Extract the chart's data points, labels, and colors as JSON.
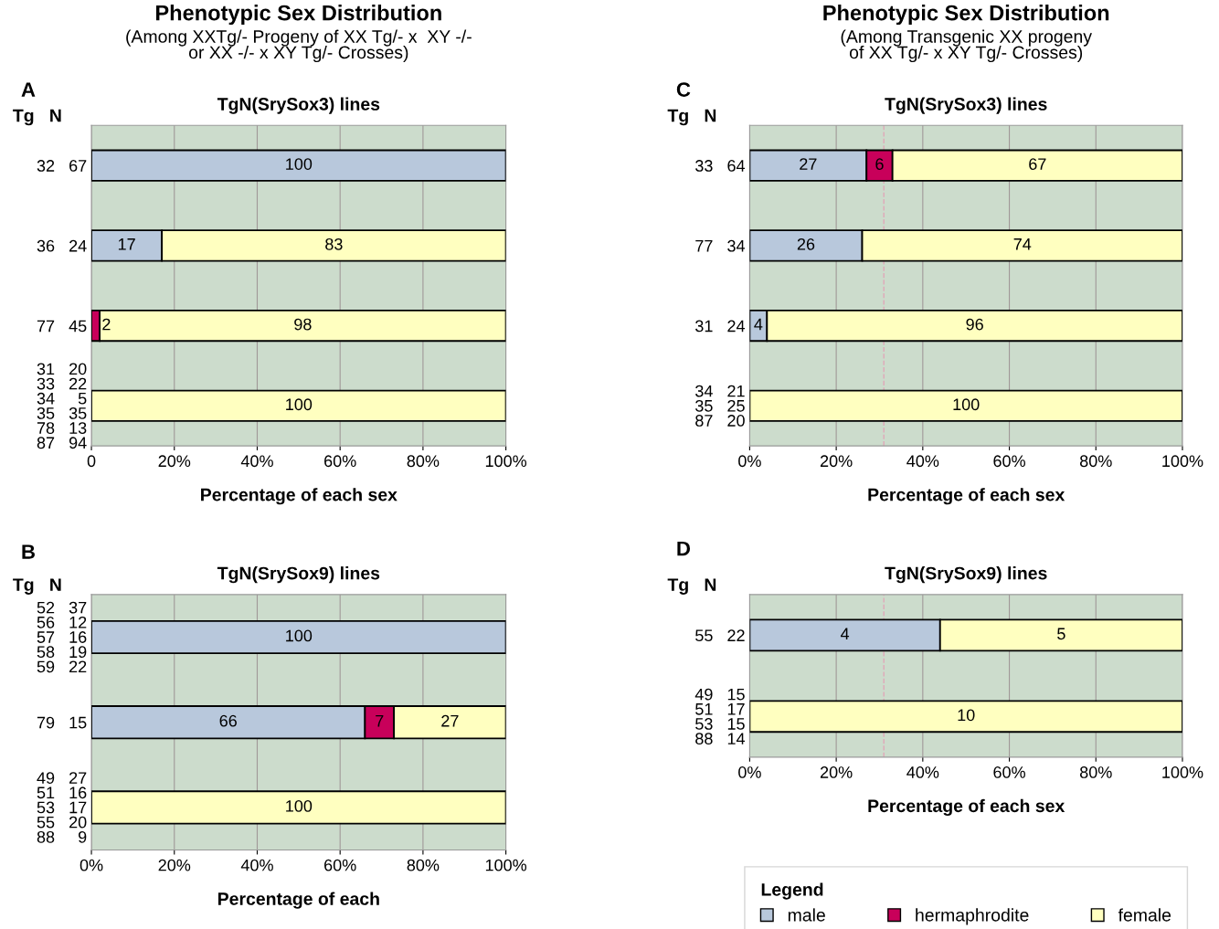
{
  "chart_data": [
    {
      "type": "bar",
      "orientation": "horizontal",
      "stacked": true,
      "title": "Phenotypic Sex Distribution",
      "subtitle": "(Among XXTg/- Progeny of XX Tg/- x  XY -/-\nor XX -/- x XY Tg/- Crosses)",
      "annotations": [
        "A",
        "TgN(SrySox3) lines"
      ],
      "ylabel": "Tg   N",
      "xlabel": "Percentage of each sex",
      "categories": [
        "32   67",
        "36   24",
        "77   45",
        "31   20\n33   22\n34     5\n35   35\n78   13\n87   94"
      ],
      "series": [
        {
          "color": "#b8c8dc",
          "values": [
            100,
            17,
            null,
            null
          ]
        },
        {
          "color": "#c8005a",
          "values": [
            null,
            null,
            2,
            null
          ]
        },
        {
          "color": "#ffffc0",
          "values": [
            null,
            83,
            98,
            100
          ]
        }
      ],
      "xlim": [
        0,
        100
      ],
      "xticks": [
        {
          "value": 0,
          "label": "0"
        },
        {
          "value": 20,
          "label": "20%"
        },
        {
          "value": 40,
          "label": "40%"
        },
        {
          "value": 60,
          "label": "60%"
        },
        {
          "value": 80,
          "label": "80%"
        },
        {
          "value": 100,
          "label": "100%"
        }
      ],
      "grid": "x",
      "data_labels": true
    },
    {
      "type": "bar",
      "orientation": "horizontal",
      "stacked": true,
      "title": "Phenotypic Sex Distribution",
      "subtitle": "(Among Transgenic XX progeny\nof XX Tg/- x XY Tg/- Crosses)",
      "annotations": [
        "C",
        "TgN(SrySox3) lines"
      ],
      "ylabel": "Tg   N",
      "xlabel": "Percentage of each sex",
      "categories": [
        "33   64",
        "77   34",
        "31   24",
        "34   21\n35   25\n87   20"
      ],
      "series": [
        {
          "color": "#b8c8dc",
          "values": [
            27,
            26,
            4,
            null
          ]
        },
        {
          "color": "#c8005a",
          "values": [
            6,
            null,
            null,
            null
          ]
        },
        {
          "color": "#ffffc0",
          "values": [
            67,
            74,
            96,
            100
          ]
        }
      ],
      "xlim": [
        0,
        100
      ],
      "xticks": [
        {
          "value": 0,
          "label": "0%"
        },
        {
          "value": 20,
          "label": "20%"
        },
        {
          "value": 40,
          "label": "40%"
        },
        {
          "value": 60,
          "label": "60%"
        },
        {
          "value": 80,
          "label": "80%"
        },
        {
          "value": 100,
          "label": "100%"
        }
      ],
      "grid": "x",
      "data_labels": true,
      "ref_lines": [
        {
          "axis": "x",
          "value": 31,
          "color": "#e0a8b8",
          "line_style": "dashed"
        }
      ]
    },
    {
      "type": "bar",
      "orientation": "horizontal",
      "stacked": true,
      "title": "TgN(SrySox9) lines",
      "annotations": [
        "B"
      ],
      "ylabel": "Tg   N",
      "xlabel": "Percentage of each",
      "categories": [
        "52   37\n56   12\n57   16\n58   19\n59   22",
        "79   15",
        "49   27\n51   16\n53   17\n55   20\n88     9"
      ],
      "series": [
        {
          "color": "#b8c8dc",
          "values": [
            100,
            66,
            null
          ]
        },
        {
          "color": "#c8005a",
          "values": [
            null,
            7,
            null
          ]
        },
        {
          "color": "#ffffc0",
          "values": [
            null,
            27,
            100
          ]
        }
      ],
      "xlim": [
        0,
        100
      ],
      "xticks": [
        {
          "value": 0,
          "label": "0%"
        },
        {
          "value": 20,
          "label": "20%"
        },
        {
          "value": 40,
          "label": "40%"
        },
        {
          "value": 60,
          "label": "60%"
        },
        {
          "value": 80,
          "label": "80%"
        },
        {
          "value": 100,
          "label": "100%"
        }
      ],
      "grid": "x",
      "data_labels": true
    },
    {
      "type": "bar",
      "orientation": "horizontal",
      "stacked": true,
      "title": "TgN(SrySox9) lines",
      "annotations": [
        "D",
        "4",
        "5",
        "10"
      ],
      "ylabel": "Tg   N",
      "xlabel": "Percentage of each sex",
      "categories": [
        "55   22",
        "49   15\n51   17\n53   15\n88   14"
      ],
      "series": [
        {
          "name": "male",
          "color": "#b8c8dc",
          "values": [
            44,
            null
          ]
        },
        {
          "name": "hermaphrodite",
          "color": "#c8005a",
          "values": [
            null,
            null
          ]
        },
        {
          "name": "female",
          "color": "#ffffc0",
          "values": [
            56,
            100
          ]
        }
      ],
      "xlim": [
        0,
        100
      ],
      "xticks": [
        {
          "value": 0,
          "label": "0%"
        },
        {
          "value": 20,
          "label": "20%"
        },
        {
          "value": 40,
          "label": "40%"
        },
        {
          "value": 60,
          "label": "60%"
        },
        {
          "value": 80,
          "label": "80%"
        },
        {
          "value": 100,
          "label": "100%"
        }
      ],
      "grid": "x",
      "legend": "bottom",
      "legend_title": "Legend",
      "ref_lines": [
        {
          "axis": "x",
          "value": 31,
          "color": "#e0a8b8",
          "line_style": "dashed"
        }
      ]
    }
  ]
}
